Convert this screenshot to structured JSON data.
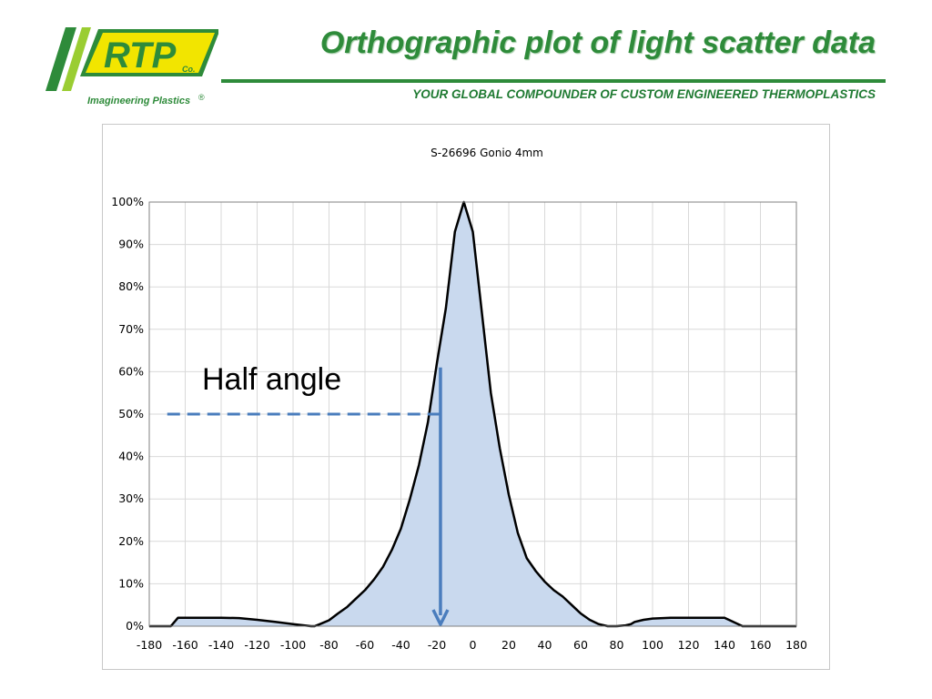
{
  "header": {
    "title": "Orthographic plot of light scatter data",
    "tagline": "YOUR GLOBAL COMPOUNDER OF CUSTOM ENGINEERED THERMOPLASTICS"
  },
  "logo": {
    "text": "RTP",
    "co": "Co.",
    "subtitle": "Imagineering Plastics",
    "mark": "®",
    "colors": {
      "green": "#2e8b3a",
      "lime": "#9acd32",
      "yellow": "#f2e500"
    }
  },
  "chart_data": {
    "type": "area",
    "title": "S-26696 Gonio 4mm",
    "xlabel": "",
    "ylabel": "",
    "xlim": [
      -180,
      180
    ],
    "ylim": [
      0,
      1
    ],
    "xticks": [
      -180,
      -160,
      -140,
      -120,
      -100,
      -80,
      -60,
      -40,
      -20,
      0,
      20,
      40,
      60,
      80,
      100,
      120,
      140,
      160,
      180
    ],
    "xtick_labels": [
      "-180",
      "-160",
      "-140",
      "-120",
      "-100",
      "-80",
      "-60",
      "-40",
      "-20",
      "0",
      "20",
      "40",
      "60",
      "80",
      "100",
      "120",
      "140",
      "160",
      "180"
    ],
    "yticks": [
      0,
      0.1,
      0.2,
      0.3,
      0.4,
      0.5,
      0.6,
      0.7,
      0.8,
      0.9,
      1.0
    ],
    "ytick_labels": [
      "0%",
      "10%",
      "20%",
      "30%",
      "40%",
      "50%",
      "60%",
      "70%",
      "80%",
      "90%",
      "100%"
    ],
    "grid": true,
    "fill_color": "#c9d9ee",
    "line_color": "#000000",
    "x": [
      -180,
      -168,
      -164,
      -160,
      -150,
      -140,
      -130,
      -120,
      -110,
      -100,
      -90,
      -88,
      -85,
      -80,
      -75,
      -70,
      -65,
      -60,
      -55,
      -50,
      -45,
      -40,
      -35,
      -30,
      -25,
      -20,
      -15,
      -10,
      -5,
      0,
      5,
      10,
      15,
      20,
      25,
      30,
      35,
      40,
      45,
      50,
      55,
      60,
      65,
      70,
      75,
      80,
      85,
      88,
      90,
      95,
      100,
      110,
      120,
      130,
      140,
      150,
      160,
      164,
      168,
      180
    ],
    "y": [
      0,
      0,
      0.02,
      0.02,
      0.02,
      0.02,
      0.019,
      0.015,
      0.01,
      0.005,
      0,
      0,
      0.005,
      0.014,
      0.03,
      0.045,
      0.065,
      0.085,
      0.11,
      0.14,
      0.18,
      0.23,
      0.3,
      0.38,
      0.48,
      0.62,
      0.75,
      0.93,
      1.0,
      0.93,
      0.74,
      0.55,
      0.42,
      0.31,
      0.22,
      0.16,
      0.13,
      0.105,
      0.085,
      0.07,
      0.05,
      0.03,
      0.015,
      0.005,
      0,
      0,
      0.002,
      0.005,
      0.01,
      0.015,
      0.018,
      0.02,
      0.02,
      0.02,
      0.02,
      0,
      0,
      0,
      0,
      0
    ],
    "annotations": [
      {
        "text": "Half angle",
        "y_level": 0.5,
        "x_from": -170,
        "x_to": -17,
        "arrow_x": -18,
        "arrow_from": 0.61,
        "arrow_to": 0.0
      }
    ]
  }
}
